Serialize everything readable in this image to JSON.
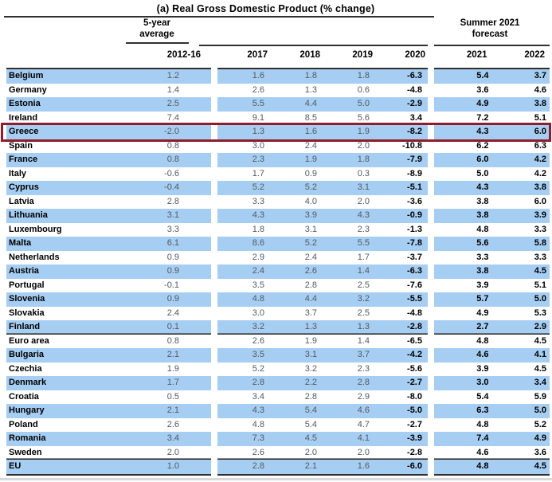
{
  "title": "(a) Real Gross Domestic Product (% change)",
  "header": {
    "avg_label": [
      "5-year",
      "average"
    ],
    "forecast_label": [
      "Summer 2021",
      "forecast"
    ]
  },
  "colors": {
    "blue": "#a6cdf2",
    "hl": "#8f1d2c",
    "muted": "#555a61",
    "rule": "#303030"
  },
  "chart_data": {
    "type": "table",
    "title": "(a) Real Gross Domestic Product (% change)",
    "column_groups": [
      "5-year average",
      "",
      "Summer 2021 forecast"
    ],
    "columns": [
      "2012-16",
      "2017",
      "2018",
      "2019",
      "2020",
      "2021",
      "2022"
    ],
    "highlighted_row": "Greece",
    "rows": [
      {
        "country": "Belgium",
        "values": [
          "1.2",
          "1.6",
          "1.8",
          "1.8",
          "-6.3",
          "5.4",
          "3.7"
        ]
      },
      {
        "country": "Germany",
        "values": [
          "1.4",
          "2.6",
          "1.3",
          "0.6",
          "-4.8",
          "3.6",
          "4.6"
        ]
      },
      {
        "country": "Estonia",
        "values": [
          "2.5",
          "5.5",
          "4.4",
          "5.0",
          "-2.9",
          "4.9",
          "3.8"
        ]
      },
      {
        "country": "Ireland",
        "values": [
          "7.4",
          "9.1",
          "8.5",
          "5.6",
          "3.4",
          "7.2",
          "5.1"
        ]
      },
      {
        "country": "Greece",
        "values": [
          "-2.0",
          "1.3",
          "1.6",
          "1.9",
          "-8.2",
          "4.3",
          "6.0"
        ],
        "highlight": true
      },
      {
        "country": "Spain",
        "values": [
          "0.8",
          "3.0",
          "2.4",
          "2.0",
          "-10.8",
          "6.2",
          "6.3"
        ]
      },
      {
        "country": "France",
        "values": [
          "0.8",
          "2.3",
          "1.9",
          "1.8",
          "-7.9",
          "6.0",
          "4.2"
        ]
      },
      {
        "country": "Italy",
        "values": [
          "-0.6",
          "1.7",
          "0.9",
          "0.3",
          "-8.9",
          "5.0",
          "4.2"
        ]
      },
      {
        "country": "Cyprus",
        "values": [
          "-0.4",
          "5.2",
          "5.2",
          "3.1",
          "-5.1",
          "4.3",
          "3.8"
        ]
      },
      {
        "country": "Latvia",
        "values": [
          "2.8",
          "3.3",
          "4.0",
          "2.0",
          "-3.6",
          "3.8",
          "6.0"
        ]
      },
      {
        "country": "Lithuania",
        "values": [
          "3.1",
          "4.3",
          "3.9",
          "4.3",
          "-0.9",
          "3.8",
          "3.9"
        ]
      },
      {
        "country": "Luxembourg",
        "values": [
          "3.3",
          "1.8",
          "3.1",
          "2.3",
          "-1.3",
          "4.8",
          "3.3"
        ]
      },
      {
        "country": "Malta",
        "values": [
          "6.1",
          "8.6",
          "5.2",
          "5.5",
          "-7.8",
          "5.6",
          "5.8"
        ]
      },
      {
        "country": "Netherlands",
        "values": [
          "0.9",
          "2.9",
          "2.4",
          "1.7",
          "-3.7",
          "3.3",
          "3.3"
        ]
      },
      {
        "country": "Austria",
        "values": [
          "0.9",
          "2.4",
          "2.6",
          "1.4",
          "-6.3",
          "3.8",
          "4.5"
        ]
      },
      {
        "country": "Portugal",
        "values": [
          "-0.1",
          "3.5",
          "2.8",
          "2.5",
          "-7.6",
          "3.9",
          "5.1"
        ]
      },
      {
        "country": "Slovenia",
        "values": [
          "0.9",
          "4.8",
          "4.4",
          "3.2",
          "-5.5",
          "5.7",
          "5.0"
        ]
      },
      {
        "country": "Slovakia",
        "values": [
          "2.4",
          "3.0",
          "3.7",
          "2.5",
          "-4.8",
          "4.9",
          "5.3"
        ]
      },
      {
        "country": "Finland",
        "values": [
          "0.1",
          "3.2",
          "1.3",
          "1.3",
          "-2.8",
          "2.7",
          "2.9"
        ]
      },
      {
        "country": "Euro area",
        "values": [
          "0.8",
          "2.6",
          "1.9",
          "1.4",
          "-6.5",
          "4.8",
          "4.5"
        ],
        "rule_above": true
      },
      {
        "country": "Bulgaria",
        "values": [
          "2.1",
          "3.5",
          "3.1",
          "3.7",
          "-4.2",
          "4.6",
          "4.1"
        ]
      },
      {
        "country": "Czechia",
        "values": [
          "1.9",
          "5.2",
          "3.2",
          "2.3",
          "-5.6",
          "3.9",
          "4.5"
        ]
      },
      {
        "country": "Denmark",
        "values": [
          "1.7",
          "2.8",
          "2.2",
          "2.8",
          "-2.7",
          "3.0",
          "3.4"
        ]
      },
      {
        "country": "Croatia",
        "values": [
          "0.5",
          "3.4",
          "2.8",
          "2.9",
          "-8.0",
          "5.4",
          "5.9"
        ]
      },
      {
        "country": "Hungary",
        "values": [
          "2.1",
          "4.3",
          "5.4",
          "4.6",
          "-5.0",
          "6.3",
          "5.0"
        ]
      },
      {
        "country": "Poland",
        "values": [
          "2.6",
          "4.8",
          "5.4",
          "4.7",
          "-2.7",
          "4.8",
          "5.2"
        ]
      },
      {
        "country": "Romania",
        "values": [
          "3.4",
          "7.3",
          "4.5",
          "4.1",
          "-3.9",
          "7.4",
          "4.9"
        ]
      },
      {
        "country": "Sweden",
        "values": [
          "2.0",
          "2.6",
          "2.0",
          "2.0",
          "-2.8",
          "4.6",
          "3.6"
        ]
      },
      {
        "country": "EU",
        "values": [
          "1.0",
          "2.8",
          "2.1",
          "1.6",
          "-6.0",
          "4.8",
          "4.5"
        ],
        "rule_above": true,
        "rule_below": true
      }
    ]
  }
}
